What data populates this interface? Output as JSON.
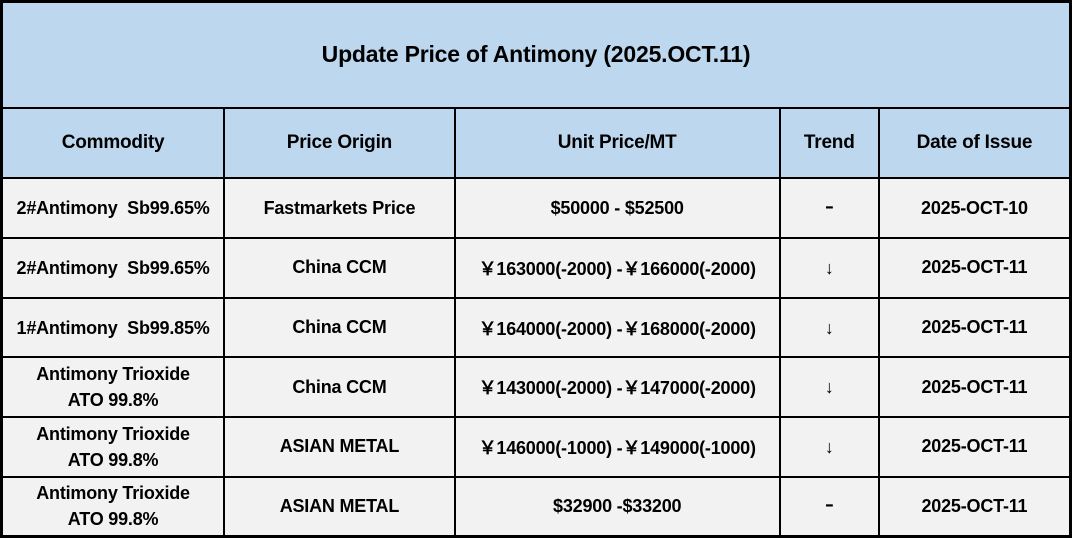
{
  "title": "Update Price of Antimony (2025.OCT.11)",
  "colors": {
    "header_bg": "#BDD7EE",
    "body_bg": "#F2F2F2",
    "border": "#000000",
    "text": "#000000"
  },
  "table": {
    "headers": {
      "commodity": "Commodity",
      "origin": "Price Origin",
      "price": "Unit Price/MT",
      "trend": "Trend",
      "date": "Date of Issue"
    },
    "rows": [
      {
        "commodity": "2#Antimony  Sb99.65%",
        "origin": "Fastmarkets Price",
        "price": "$50000 - $52500",
        "trend": "-",
        "date": "2025-OCT-10"
      },
      {
        "commodity": "2#Antimony  Sb99.65%",
        "origin": "China CCM",
        "price": "￥163000(-2000) -￥166000(-2000)",
        "trend": "↓",
        "date": "2025-OCT-11"
      },
      {
        "commodity": "1#Antimony  Sb99.85%",
        "origin": "China CCM",
        "price": "￥164000(-2000) -￥168000(-2000)",
        "trend": "↓",
        "date": "2025-OCT-11"
      },
      {
        "commodity": "Antimony Trioxide\nATO 99.8%",
        "origin": "China CCM",
        "price": "￥143000(-2000) -￥147000(-2000)",
        "trend": "↓",
        "date": "2025-OCT-11"
      },
      {
        "commodity": "Antimony Trioxide\nATO 99.8%",
        "origin": "ASIAN METAL",
        "price": "￥146000(-1000) -￥149000(-1000)",
        "trend": "↓",
        "date": "2025-OCT-11"
      },
      {
        "commodity": "Antimony Trioxide\nATO 99.8%",
        "origin": "ASIAN METAL",
        "price": "$32900 -$33200",
        "trend": "-",
        "date": "2025-OCT-11"
      }
    ]
  },
  "chart_data": {
    "type": "table",
    "title": "Update Price of Antimony (2025.OCT.11)",
    "columns": [
      "Commodity",
      "Price Origin",
      "Unit Price/MT",
      "Trend",
      "Date of Issue"
    ],
    "rows": [
      [
        "2#Antimony Sb99.65%",
        "Fastmarkets Price",
        "$50000 - $52500",
        "-",
        "2025-OCT-10"
      ],
      [
        "2#Antimony Sb99.65%",
        "China CCM",
        "￥163000(-2000) -￥166000(-2000)",
        "down",
        "2025-OCT-11"
      ],
      [
        "1#Antimony Sb99.85%",
        "China CCM",
        "￥164000(-2000) -￥168000(-2000)",
        "down",
        "2025-OCT-11"
      ],
      [
        "Antimony Trioxide ATO 99.8%",
        "China CCM",
        "￥143000(-2000) -￥147000(-2000)",
        "down",
        "2025-OCT-11"
      ],
      [
        "Antimony Trioxide ATO 99.8%",
        "ASIAN METAL",
        "￥146000(-1000) -￥149000(-1000)",
        "down",
        "2025-OCT-11"
      ],
      [
        "Antimony Trioxide ATO 99.8%",
        "ASIAN METAL",
        "$32900 -$33200",
        "-",
        "2025-OCT-11"
      ]
    ]
  }
}
